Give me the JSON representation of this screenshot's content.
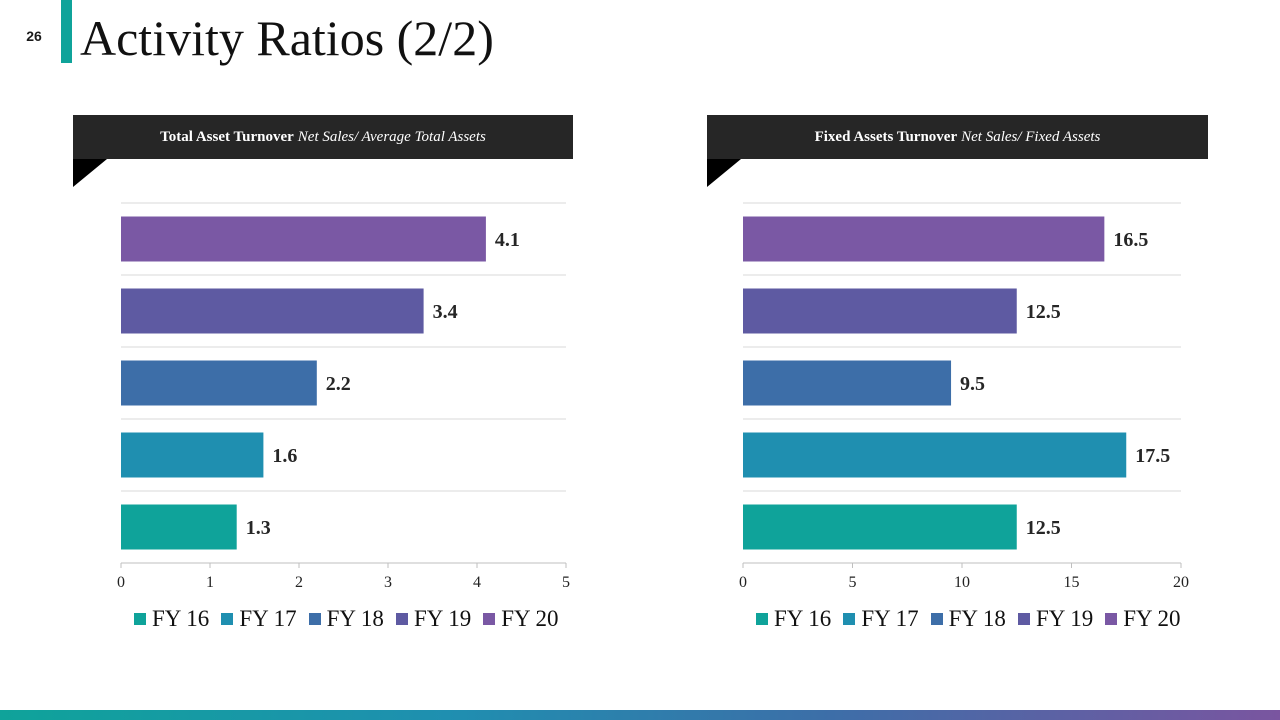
{
  "slide": {
    "number": "26",
    "title": "Activity Ratios (2/2)"
  },
  "colors": {
    "accent": "#0fa39a",
    "header_bg": "#262626",
    "FY 16": "#0fa39a",
    "FY 17": "#1f8fb0",
    "FY 18": "#3d6ea8",
    "FY 19": "#5e5aa2",
    "FY 20": "#7a58a4"
  },
  "chart_data": [
    {
      "type": "bar",
      "orientation": "horizontal",
      "title_bold": "Total Asset Turnover",
      "title_italic": "Net Sales/ Average Total Assets",
      "categories": [
        "FY 16",
        "FY 17",
        "FY 18",
        "FY 19",
        "FY 20"
      ],
      "values": [
        1.3,
        1.6,
        2.2,
        3.4,
        4.1
      ],
      "value_labels": [
        "1.3",
        "1.6",
        "2.2",
        "3.4",
        "4.1"
      ],
      "xlim": [
        0,
        5
      ],
      "ticks": [
        "0",
        "1",
        "2",
        "3",
        "4",
        "5"
      ],
      "grid": true,
      "legend_position": "bottom"
    },
    {
      "type": "bar",
      "orientation": "horizontal",
      "title_bold": "Fixed Assets Turnover",
      "title_italic": "Net Sales/ Fixed Assets",
      "categories": [
        "FY 16",
        "FY 17",
        "FY 18",
        "FY 19",
        "FY 20"
      ],
      "values": [
        12.5,
        17.5,
        9.5,
        12.5,
        16.5
      ],
      "value_labels": [
        "12.5",
        "17.5",
        "9.5",
        "12.5",
        "16.5"
      ],
      "xlim": [
        0,
        20
      ],
      "ticks": [
        "0",
        "5",
        "10",
        "15",
        "20"
      ],
      "grid": true,
      "legend_position": "bottom"
    }
  ]
}
